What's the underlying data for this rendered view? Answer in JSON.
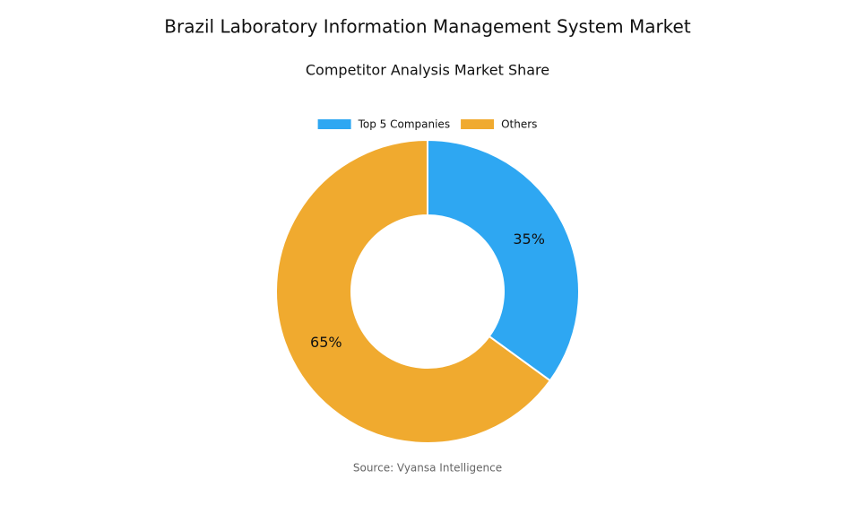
{
  "chart_data": {
    "type": "donut",
    "title": "Brazil Laboratory Information Management System Market",
    "subtitle": "Competitor Analysis Market Share",
    "source": "Source: Vyansa Intelligence",
    "categories": [
      "Top 5 Companies",
      "Others"
    ],
    "values": [
      35,
      65
    ],
    "value_labels": [
      "35%",
      "65%"
    ],
    "colors": [
      "#2ea7f2",
      "#f0aa2f"
    ],
    "legend": "top"
  }
}
